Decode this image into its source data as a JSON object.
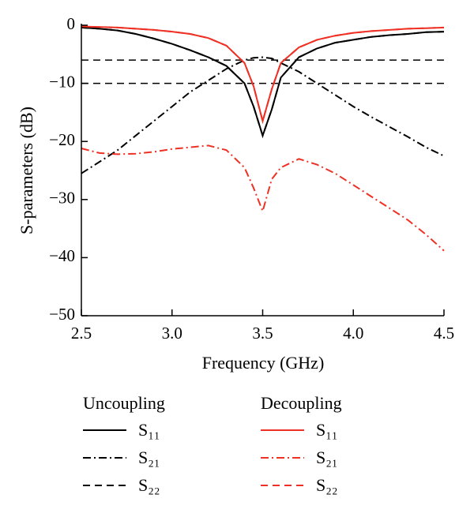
{
  "chart_data": {
    "type": "line",
    "xlabel": "Frequency (GHz)",
    "ylabel": "S-parameters (dB)",
    "xlim": [
      2.5,
      4.5
    ],
    "xticks": [
      2.5,
      {
        "value": 3,
        "label": "3.0"
      },
      3.5,
      {
        "value": 4,
        "label": "4.0"
      },
      4.5
    ],
    "ylim": [
      -50,
      0
    ],
    "yticks": [
      0,
      {
        "value": -10,
        "label": "−10"
      },
      {
        "value": -20,
        "label": "−20"
      },
      {
        "value": -30,
        "label": "−30"
      },
      {
        "value": -40,
        "label": "−40"
      },
      {
        "value": -50,
        "label": "−50"
      }
    ],
    "hlines": [
      -6,
      -10
    ],
    "legend_titles": [
      "Uncoupling",
      "Decoupling"
    ],
    "x": [
      2.5,
      2.6,
      2.7,
      2.8,
      2.9,
      3.0,
      3.1,
      3.2,
      3.3,
      3.4,
      3.45,
      3.5,
      3.55,
      3.6,
      3.7,
      3.8,
      3.9,
      4.0,
      4.1,
      4.2,
      4.3,
      4.4,
      4.5
    ],
    "series": [
      {
        "name": "S₁₁",
        "color": "#000000",
        "dash": "solid",
        "values": [
          -0.4,
          -0.6,
          -0.9,
          -1.5,
          -2.3,
          -3.2,
          -4.3,
          -5.5,
          -7,
          -10,
          -14,
          -19,
          -14.5,
          -9,
          -5.5,
          -4,
          -3,
          -2.5,
          -2,
          -1.7,
          -1.5,
          -1.2,
          -1.1
        ]
      },
      {
        "name": "S₂₁",
        "color": "#000000",
        "dash": "dashdot",
        "values": [
          -25.5,
          -23.5,
          -21.5,
          -19,
          -16.5,
          -14,
          -11.5,
          -9.5,
          -7.5,
          -6,
          -5.6,
          -5.5,
          -5.7,
          -6.5,
          -8,
          -10,
          -12,
          -14,
          -15.8,
          -17.5,
          -19.2,
          -21,
          -22.5
        ]
      },
      {
        "name": "S₂₂",
        "color": "#000000",
        "dash": "dashed",
        "values": [
          -0.4,
          -0.6,
          -0.9,
          -1.5,
          -2.3,
          -3.2,
          -4.3,
          -5.5,
          -7,
          -10,
          -14,
          -19,
          -14.5,
          -9,
          -5.5,
          -4,
          -3,
          -2.5,
          -2,
          -1.7,
          -1.5,
          -1.2,
          -1.1
        ]
      },
      {
        "name": "S₁₁",
        "color": "#ee3124",
        "dash": "solid",
        "values": [
          -0.2,
          -0.3,
          -0.4,
          -0.6,
          -0.8,
          -1.1,
          -1.5,
          -2.2,
          -3.5,
          -6.5,
          -10.5,
          -16.5,
          -11,
          -6.5,
          -3.8,
          -2.5,
          -1.8,
          -1.3,
          -1,
          -0.8,
          -0.6,
          -0.5,
          -0.4
        ]
      },
      {
        "name": "S₂₁",
        "color": "#ee3124",
        "dash": "dashdot",
        "values": [
          -21.2,
          -22,
          -22.2,
          -22.1,
          -21.8,
          -21.3,
          -21,
          -20.7,
          -21.5,
          -24.5,
          -28,
          -32,
          -26.5,
          -24.5,
          -23,
          -24,
          -25.5,
          -27.5,
          -29.5,
          -31.5,
          -33.5,
          -36,
          -38.8
        ]
      },
      {
        "name": "S₂₂",
        "color": "#ee3124",
        "dash": "dashed",
        "values": [
          -0.2,
          -0.3,
          -0.4,
          -0.6,
          -0.8,
          -1.1,
          -1.5,
          -2.2,
          -3.5,
          -6.5,
          -10.5,
          -16.5,
          -11,
          -6.5,
          -3.8,
          -2.5,
          -1.8,
          -1.3,
          -1,
          -0.8,
          -0.6,
          -0.5,
          -0.4
        ]
      }
    ]
  }
}
